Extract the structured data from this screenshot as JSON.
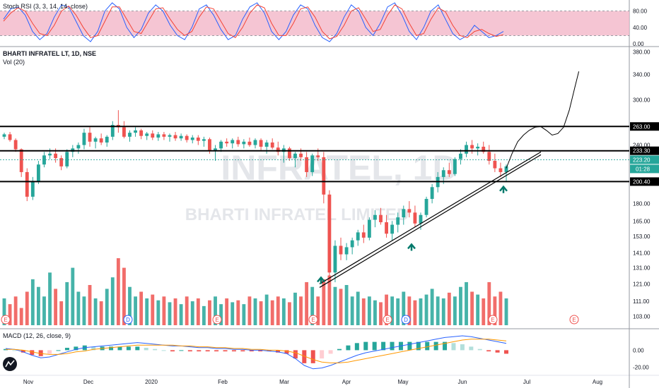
{
  "panes": {
    "stoch": {
      "title": "Stoch RSI (3, 3, 14, 14, close)"
    },
    "main": {
      "title": "BHARTI INFRATEL LT, 1D, NSE",
      "vol_title": "Vol (20)"
    },
    "macd": {
      "title": "MACD (12, 26, close, 9)"
    }
  },
  "watermark": {
    "big": "INFRATEL, 1D",
    "small": "BHARTI INFRATEL LIMITED"
  },
  "timer": "01:28",
  "event_badges": [
    "E",
    "D",
    "E",
    "E",
    "E",
    "D",
    "E",
    "E"
  ],
  "chart_data": [
    {
      "type": "line",
      "name": "stoch_rsi",
      "yticks": [
        "80.00",
        "40.00",
        "0.00"
      ],
      "band": [
        20,
        80
      ],
      "ylim": [
        0,
        100
      ],
      "series": [
        {
          "color": "#2962ff",
          "values": [
            60,
            85,
            90,
            70,
            30,
            10,
            25,
            65,
            95,
            90,
            55,
            20,
            5,
            30,
            80,
            100,
            85,
            40,
            15,
            35,
            75,
            95,
            80,
            45,
            20,
            10,
            40,
            85,
            95,
            70,
            35,
            10,
            20,
            60,
            90,
            100,
            75,
            30,
            10,
            30,
            70,
            95,
            85,
            45,
            15,
            5,
            25,
            65,
            95,
            80,
            40,
            20,
            50,
            90,
            100,
            70,
            30,
            10,
            40,
            80,
            95,
            60,
            25,
            10,
            20,
            45,
            30,
            15,
            20,
            30
          ]
        },
        {
          "color": "#f44336",
          "values": [
            55,
            75,
            88,
            80,
            50,
            25,
            20,
            45,
            80,
            92,
            70,
            40,
            15,
            20,
            55,
            90,
            90,
            60,
            30,
            25,
            55,
            85,
            88,
            60,
            35,
            20,
            30,
            65,
            90,
            85,
            55,
            25,
            15,
            40,
            75,
            95,
            88,
            50,
            20,
            20,
            50,
            85,
            90,
            65,
            30,
            12,
            18,
            45,
            80,
            88,
            60,
            30,
            35,
            70,
            95,
            85,
            50,
            20,
            25,
            60,
            88,
            78,
            45,
            20,
            15,
            30,
            35,
            25,
            18,
            22
          ]
        }
      ],
      "colors": {
        "band": "#f3b6c8",
        "k": "#2962ff",
        "d": "#f44336"
      }
    },
    {
      "type": "candlestick",
      "name": "price",
      "yticks": [
        "380.00",
        "340.00",
        "300.00",
        "263.00",
        "240.00",
        "233.30",
        "223.20",
        "200.40",
        "180.00",
        "165.00",
        "153.00",
        "141.00",
        "131.00",
        "121.00",
        "111.00",
        "103.00"
      ],
      "ylim": [
        97,
        390
      ],
      "xticks": [
        "Nov",
        "Dec",
        "2020",
        "Feb",
        "Mar",
        "Apr",
        "May",
        "Jun",
        "Jul",
        "Aug"
      ],
      "levels": [
        263.0,
        233.3,
        200.4
      ],
      "current_price": 223.2,
      "candles": [
        [
          250,
          255,
          247,
          253
        ],
        [
          253,
          256,
          244,
          246
        ],
        [
          246,
          248,
          232,
          235
        ],
        [
          235,
          236,
          205,
          210
        ],
        [
          210,
          214,
          182,
          186
        ],
        [
          186,
          205,
          183,
          200
        ],
        [
          200,
          222,
          198,
          218
        ],
        [
          218,
          232,
          215,
          228
        ],
        [
          228,
          236,
          224,
          230
        ],
        [
          230,
          236,
          220,
          225
        ],
        [
          225,
          228,
          212,
          216
        ],
        [
          216,
          235,
          214,
          232
        ],
        [
          232,
          240,
          226,
          236
        ],
        [
          236,
          243,
          230,
          240
        ],
        [
          240,
          260,
          235,
          255
        ],
        [
          255,
          262,
          238,
          244
        ],
        [
          244,
          250,
          236,
          248
        ],
        [
          248,
          254,
          240,
          243
        ],
        [
          243,
          252,
          238,
          250
        ],
        [
          250,
          270,
          246,
          265
        ],
        [
          265,
          285,
          255,
          262
        ],
        [
          262,
          270,
          248,
          250
        ],
        [
          250,
          258,
          244,
          255
        ],
        [
          255,
          262,
          250,
          258
        ],
        [
          258,
          260,
          247,
          251
        ],
        [
          251,
          256,
          246,
          254
        ],
        [
          254,
          258,
          246,
          249
        ],
        [
          249,
          256,
          245,
          253
        ],
        [
          253,
          256,
          246,
          250
        ],
        [
          250,
          254,
          244,
          252
        ],
        [
          252,
          256,
          245,
          248
        ],
        [
          248,
          254,
          245,
          251
        ],
        [
          251,
          253,
          243,
          246
        ],
        [
          246,
          252,
          242,
          249
        ],
        [
          249,
          252,
          240,
          245
        ],
        [
          245,
          250,
          238,
          247
        ],
        [
          247,
          249,
          230,
          234
        ],
        [
          234,
          240,
          222,
          236
        ],
        [
          236,
          246,
          232,
          244
        ],
        [
          244,
          248,
          238,
          242
        ],
        [
          242,
          248,
          236,
          246
        ],
        [
          246,
          250,
          238,
          241
        ],
        [
          241,
          247,
          236,
          244
        ],
        [
          244,
          249,
          238,
          240
        ],
        [
          240,
          248,
          236,
          246
        ],
        [
          246,
          248,
          234,
          238
        ],
        [
          238,
          246,
          230,
          243
        ],
        [
          243,
          248,
          235,
          237
        ],
        [
          237,
          244,
          228,
          232
        ],
        [
          232,
          240,
          220,
          236
        ],
        [
          236,
          238,
          222,
          225
        ],
        [
          225,
          232,
          215,
          230
        ],
        [
          230,
          236,
          222,
          226
        ],
        [
          226,
          232,
          205,
          210
        ],
        [
          210,
          230,
          206,
          228
        ],
        [
          228,
          236,
          222,
          226
        ],
        [
          226,
          232,
          180,
          188
        ],
        [
          188,
          192,
          124,
          128
        ],
        [
          128,
          150,
          122,
          146
        ],
        [
          146,
          152,
          136,
          140
        ],
        [
          140,
          148,
          136,
          145
        ],
        [
          145,
          152,
          140,
          150
        ],
        [
          150,
          158,
          146,
          156
        ],
        [
          156,
          162,
          148,
          152
        ],
        [
          152,
          168,
          150,
          166
        ],
        [
          166,
          174,
          160,
          170
        ],
        [
          170,
          176,
          162,
          164
        ],
        [
          164,
          170,
          152,
          155
        ],
        [
          155,
          165,
          150,
          162
        ],
        [
          162,
          172,
          156,
          168
        ],
        [
          168,
          178,
          162,
          175
        ],
        [
          175,
          182,
          168,
          172
        ],
        [
          172,
          178,
          160,
          163
        ],
        [
          163,
          172,
          158,
          170
        ],
        [
          170,
          186,
          168,
          184
        ],
        [
          184,
          198,
          180,
          195
        ],
        [
          195,
          210,
          190,
          205
        ],
        [
          205,
          215,
          198,
          212
        ],
        [
          212,
          220,
          205,
          208
        ],
        [
          208,
          226,
          206,
          224
        ],
        [
          224,
          235,
          218,
          230
        ],
        [
          230,
          244,
          226,
          240
        ],
        [
          240,
          246,
          230,
          236
        ],
        [
          236,
          242,
          228,
          238
        ],
        [
          238,
          244,
          230,
          232
        ],
        [
          232,
          240,
          218,
          222
        ],
        [
          222,
          230,
          210,
          214
        ],
        [
          214,
          220,
          205,
          210
        ],
        [
          210,
          218,
          200,
          216
        ]
      ],
      "projection": [
        [
          0,
          214
        ],
        [
          6,
          230
        ],
        [
          12,
          244
        ],
        [
          18,
          252
        ],
        [
          24,
          258
        ],
        [
          30,
          262
        ],
        [
          36,
          263
        ],
        [
          42,
          258
        ],
        [
          48,
          252
        ],
        [
          54,
          254
        ],
        [
          60,
          262
        ],
        [
          66,
          285
        ],
        [
          72,
          320
        ],
        [
          76,
          345
        ]
      ],
      "colors": {
        "up": "#26a69a",
        "down": "#ef5350",
        "level": "#000000",
        "trend": "#000000",
        "arrow": "#00796b"
      }
    },
    {
      "type": "bar",
      "name": "volume",
      "values": [
        28,
        22,
        30,
        18,
        35,
        48,
        40,
        30,
        55,
        38,
        25,
        45,
        60,
        35,
        30,
        42,
        28,
        25,
        38,
        50,
        70,
        60,
        40,
        30,
        35,
        28,
        32,
        26,
        30,
        24,
        28,
        22,
        30,
        25,
        28,
        20,
        26,
        30,
        22,
        28,
        24,
        26,
        22,
        30,
        28,
        25,
        32,
        26,
        30,
        28,
        24,
        34,
        30,
        45,
        40,
        30,
        48,
        52,
        40,
        38,
        42,
        30,
        35,
        28,
        30,
        26,
        24,
        32,
        30,
        28,
        35,
        30,
        26,
        28,
        32,
        38,
        30,
        28,
        34,
        30,
        40,
        45,
        35,
        32,
        28,
        45,
        30,
        35,
        28,
        26
      ]
    },
    {
      "type": "line",
      "name": "macd",
      "yticks": [
        "0.00",
        "-20.00"
      ],
      "ylim": [
        -28,
        22
      ],
      "series": [
        {
          "color": "#2962ff",
          "values": [
            2,
            1,
            -2,
            -6,
            -9,
            -8,
            -5,
            -2,
            1,
            3,
            4,
            5,
            6,
            7,
            8,
            9,
            8,
            7,
            6,
            5,
            5,
            4,
            3,
            3,
            2,
            2,
            1,
            1,
            0,
            0,
            -1,
            -2,
            -4,
            -10,
            -18,
            -22,
            -21,
            -18,
            -14,
            -10,
            -6,
            -3,
            -1,
            1,
            3,
            5,
            7,
            9,
            11,
            13,
            15,
            16,
            17,
            16,
            14,
            12,
            10,
            8
          ]
        },
        {
          "color": "#ff9800",
          "values": [
            1,
            1,
            0,
            -2,
            -4,
            -5,
            -5,
            -4,
            -2,
            -1,
            1,
            2,
            3,
            4,
            5,
            6,
            6,
            6,
            6,
            6,
            5,
            5,
            4,
            4,
            3,
            3,
            2,
            2,
            1,
            1,
            0,
            0,
            -1,
            -3,
            -7,
            -11,
            -14,
            -15,
            -15,
            -14,
            -12,
            -10,
            -8,
            -6,
            -4,
            -2,
            0,
            2,
            4,
            6,
            8,
            10,
            12,
            13,
            13,
            13,
            12,
            11
          ]
        }
      ],
      "colors": {
        "hist_up": "#26a69a",
        "hist_down": "#ef5350",
        "hist_up_light": "#b2dfdb",
        "hist_down_light": "#ffcdd2"
      }
    }
  ]
}
